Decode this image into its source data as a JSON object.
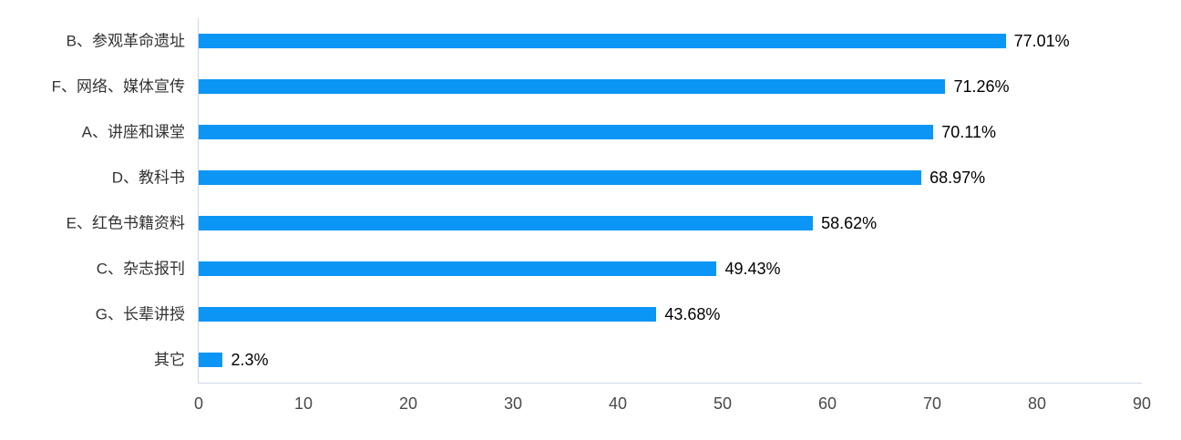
{
  "chart_data": {
    "type": "bar",
    "orientation": "horizontal",
    "title": "",
    "xlabel": "",
    "ylabel": "",
    "grid": false,
    "legend": false,
    "categories": [
      "B、参观革命遗址",
      "F、网络、媒体宣传",
      "A、讲座和课堂",
      "D、教科书",
      "E、红色书籍资料",
      "C、杂志报刊",
      "G、长辈讲授",
      "其它"
    ],
    "values": [
      77.01,
      71.26,
      70.11,
      68.97,
      58.62,
      49.43,
      43.68,
      2.3
    ],
    "data_labels": [
      "77.01%",
      "71.26%",
      "70.11%",
      "68.97%",
      "58.62%",
      "49.43%",
      "43.68%",
      "2.3%"
    ],
    "x_ticks": [
      0,
      10,
      20,
      30,
      40,
      50,
      60,
      70,
      80,
      90
    ],
    "xlim": [
      0,
      90
    ],
    "colors": {
      "bar": "#0b96f5",
      "axis_line": "#ccd5e8",
      "tick_label": "#494949",
      "category_label": "#333333",
      "data_label": "#000000",
      "background": "#ffffff"
    }
  }
}
